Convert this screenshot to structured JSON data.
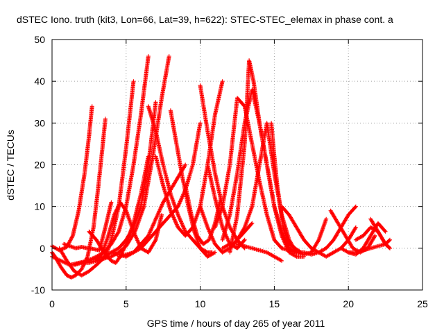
{
  "chart_data": {
    "type": "scatter",
    "title": "dSTEC Iono. truth (kit3, Lon=66, Lat=39, h=622): STEC-STEC_elemax in phase cont. a",
    "xlabel": "GPS time / hours of day 265 of year 2011",
    "ylabel": "dSTEC  / TECUs",
    "xlim": [
      0,
      25
    ],
    "ylim": [
      -10,
      50
    ],
    "xticks": [
      0,
      5,
      10,
      15,
      20,
      25
    ],
    "yticks": [
      -10,
      0,
      10,
      20,
      30,
      40,
      50
    ],
    "grid": true,
    "marker": "plus",
    "color": "#ff0000",
    "series": [
      {
        "x": [
          0,
          0.5,
          1.0,
          1.4,
          1.8,
          2.2,
          2.5,
          2.7
        ],
        "y": [
          0.5,
          -0.5,
          0.3,
          3,
          9,
          18,
          27,
          34
        ]
      },
      {
        "x": [
          -0.2,
          0.2,
          0.6,
          1.0,
          1.3,
          1.6,
          2.0,
          2.4,
          2.8,
          3.1,
          3.4,
          3.6
        ],
        "y": [
          0,
          -2,
          -4.5,
          -6.5,
          -7,
          -6.5,
          -5,
          -2,
          5,
          14,
          24,
          31
        ]
      },
      {
        "x": [
          0.5,
          1.0,
          1.5,
          2.0,
          2.5,
          3.0,
          3.6,
          4.0,
          4.5,
          5.0,
          5.5
        ],
        "y": [
          0,
          -3,
          -5.5,
          -6.5,
          -5.5,
          -4,
          -2,
          2,
          10,
          24,
          40
        ]
      },
      {
        "x": [
          0,
          0.6,
          1.2,
          1.8,
          2.4,
          3.0,
          3.5,
          4.0,
          4.5,
          5.0,
          5.5,
          6.0,
          6.5
        ],
        "y": [
          -2,
          -3,
          -4,
          -3.5,
          -3,
          -2,
          -1,
          1,
          4,
          10,
          20,
          32,
          46
        ]
      },
      {
        "x": [
          1.5,
          2.0,
          2.5,
          3.0,
          3.5,
          4.0,
          4.5,
          5.0,
          5.5,
          6.0,
          6.5,
          7.0
        ],
        "y": [
          -4,
          -3.5,
          -3,
          -2.5,
          -2,
          -1,
          0,
          2,
          5,
          10,
          20,
          35
        ]
      },
      {
        "x": [
          2.0,
          2.5,
          3.0,
          3.5,
          4.0,
          4.5,
          5.0,
          5.6,
          6.2,
          6.8,
          7.4,
          7.9
        ],
        "y": [
          -3.5,
          -3.5,
          -3,
          -2.5,
          -2,
          -1,
          0.5,
          4,
          10,
          22,
          36,
          46
        ]
      },
      {
        "x": [
          0.8,
          1.2,
          1.6,
          2.0,
          2.4,
          2.8,
          3.2,
          3.6,
          4.0
        ],
        "y": [
          1,
          0.5,
          0,
          0.3,
          0,
          -0.2,
          -0.5,
          5,
          11
        ]
      },
      {
        "x": [
          2.5,
          3.0,
          3.5,
          4.0,
          4.3,
          4.6,
          5.0,
          5.5,
          6.0,
          6.5
        ],
        "y": [
          4,
          2,
          -1,
          -3,
          -3.5,
          -2,
          1,
          6,
          13,
          22
        ]
      },
      {
        "x": [
          3.0,
          3.4,
          3.8,
          4.2,
          4.6,
          5.0,
          5.5,
          6.0,
          6.5,
          7.0,
          7.4
        ],
        "y": [
          -3,
          -1,
          3,
          8,
          11,
          9,
          4,
          0,
          -1,
          2,
          8
        ]
      },
      {
        "x": [
          4.0,
          4.5,
          5.0,
          5.5,
          6.0,
          6.5,
          7.0,
          7.5,
          8.0,
          8.5,
          9.0
        ],
        "y": [
          -1,
          -1.5,
          -2,
          -1,
          1,
          3,
          7,
          11,
          14,
          17,
          20
        ]
      },
      {
        "x": [
          4.5,
          5.0,
          5.5,
          6.0,
          6.5,
          7.0,
          7.5,
          8.0,
          8.5,
          9.0,
          9.5,
          10.0
        ],
        "y": [
          -2,
          -1.5,
          -1,
          0,
          2,
          4,
          6,
          8,
          10,
          14,
          20,
          30
        ]
      },
      {
        "x": [
          6.5,
          7.0,
          7.5,
          8.0,
          8.5,
          9.0,
          9.5,
          10.0,
          10.5,
          10.8
        ],
        "y": [
          34,
          28,
          20,
          13,
          8,
          4,
          2,
          0,
          -1,
          -1
        ]
      },
      {
        "x": [
          7.0,
          7.5,
          8.0,
          8.5,
          9.0,
          9.5,
          10.0,
          10.5,
          11.0,
          11.5
        ],
        "y": [
          22,
          15,
          9,
          5,
          3,
          5,
          10,
          20,
          32,
          40
        ]
      },
      {
        "x": [
          8.0,
          8.4,
          8.8,
          9.2,
          9.6,
          10.0,
          10.5,
          11.0
        ],
        "y": [
          33,
          25,
          17,
          10,
          4,
          0,
          -2,
          -1
        ]
      },
      {
        "x": [
          9.0,
          9.4,
          9.8,
          10.2,
          10.6,
          11.0,
          11.4
        ],
        "y": [
          15,
          8,
          3,
          1,
          2,
          6,
          12
        ]
      },
      {
        "x": [
          10.0,
          10.5,
          11.0,
          11.5,
          12.0,
          12.5,
          13.0
        ],
        "y": [
          39,
          28,
          18,
          10,
          5,
          2,
          0
        ]
      },
      {
        "x": [
          10.0,
          10.5,
          11.0,
          11.5,
          12.0,
          12.5,
          13.0,
          13.5
        ],
        "y": [
          10,
          5,
          1,
          -1,
          0,
          2,
          4,
          6
        ]
      },
      {
        "x": [
          10.5,
          11.0,
          11.5,
          12.0,
          12.5,
          13.0
        ],
        "y": [
          20,
          12,
          5,
          1,
          0,
          2
        ]
      },
      {
        "x": [
          11.0,
          11.5,
          12.0,
          12.5,
          13.0,
          13.5,
          14.0,
          14.5,
          15.0,
          15.5
        ],
        "y": [
          5,
          10,
          20,
          36,
          34,
          25,
          16,
          8,
          2,
          0
        ]
      },
      {
        "x": [
          11.5,
          12.0,
          12.5,
          13.0,
          13.5,
          14.0,
          14.5,
          15.0,
          15.5,
          16.0,
          16.5
        ],
        "y": [
          2,
          8,
          18,
          30,
          38,
          30,
          20,
          10,
          4,
          0,
          -1
        ]
      },
      {
        "x": [
          12.0,
          12.5,
          13.0,
          13.3,
          13.6,
          14.0,
          14.5,
          15.0,
          15.5,
          16.0,
          16.5,
          17.0
        ],
        "y": [
          -1,
          8,
          25,
          45,
          40,
          30,
          20,
          10,
          3,
          -1,
          -2,
          -2
        ]
      },
      {
        "x": [
          12.5,
          13.0,
          13.5,
          14.0,
          14.5,
          15.0,
          15.5,
          16.0,
          16.5,
          17.0
        ],
        "y": [
          2,
          5,
          10,
          20,
          30,
          18,
          8,
          2,
          -1,
          -1
        ]
      },
      {
        "x": [
          11.5,
          12.0,
          12.5,
          13.0,
          13.5,
          14.0,
          14.5,
          15.0,
          15.5
        ],
        "y": [
          0,
          1,
          1,
          0.5,
          0,
          -0.5,
          -1,
          -2,
          -3
        ]
      },
      {
        "x": [
          14.8,
          15.0,
          15.2,
          15.4,
          15.6,
          15.8,
          16.0,
          16.4,
          16.8
        ],
        "y": [
          30,
          22,
          15,
          10,
          5,
          3,
          1,
          0,
          -1
        ]
      },
      {
        "x": [
          15.5,
          16.0,
          16.5,
          17.0,
          17.5,
          18.0,
          18.5,
          19.0,
          19.5,
          20.0,
          20.5
        ],
        "y": [
          10,
          8,
          5,
          2,
          0,
          -1,
          -2,
          -1,
          0,
          2,
          5
        ]
      },
      {
        "x": [
          15.5,
          16.0,
          16.5,
          17.0,
          17.5,
          18.0,
          18.5
        ],
        "y": [
          0,
          -0.5,
          -1,
          -1.5,
          -1,
          2,
          7
        ]
      },
      {
        "x": [
          17.0,
          17.5,
          18.0,
          18.5,
          19.0,
          19.5,
          20.0,
          20.5
        ],
        "y": [
          -1,
          -1.5,
          -1,
          0,
          2,
          5,
          8,
          10
        ]
      },
      {
        "x": [
          18.8,
          19.3,
          19.8,
          20.3,
          20.8,
          21.3,
          21.8
        ],
        "y": [
          9,
          6,
          3,
          0,
          -1,
          0,
          3
        ]
      },
      {
        "x": [
          19.5,
          20.0,
          20.5,
          21.0,
          21.5,
          22.0,
          22.5
        ],
        "y": [
          0,
          -1,
          -1.5,
          0,
          3,
          6,
          4
        ]
      },
      {
        "x": [
          20.5,
          21.0,
          21.5,
          22.0,
          22.5,
          22.8
        ],
        "y": [
          2,
          3,
          5,
          4,
          1,
          0
        ]
      },
      {
        "x": [
          21.5,
          22.0,
          22.5,
          22.8
        ],
        "y": [
          7,
          4,
          1,
          0
        ]
      },
      {
        "x": [
          20.0,
          20.5,
          21.0,
          21.5,
          22.0,
          22.5,
          22.8
        ],
        "y": [
          -1,
          -1,
          -0.5,
          0,
          0.5,
          1,
          2
        ]
      }
    ]
  }
}
